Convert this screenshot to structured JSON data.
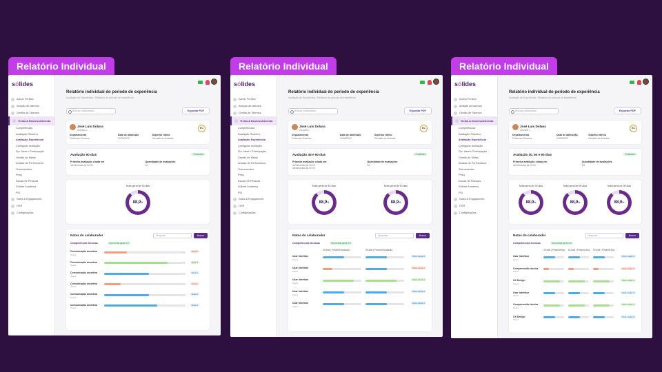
{
  "panels": [
    {
      "tag": "Relatório Individual"
    },
    {
      "tag": "Relatório Individual"
    },
    {
      "tag": "Relatório Individual"
    }
  ],
  "colors": {
    "accent": "#5a2a8a",
    "tag": "#c23ce8",
    "ring": "#6a2a8a",
    "green": "#a4e08a",
    "blue": "#4aabe8",
    "orange": "#f59a7a"
  },
  "app": {
    "logo_a": "s",
    "logo_o": "ó",
    "logo_b": "lides",
    "sidebar": [
      {
        "label": "Admin Perfiles",
        "type": "item"
      },
      {
        "label": "Atração de talentos",
        "type": "item"
      },
      {
        "label": "Gestão de Talentos",
        "type": "item"
      },
      {
        "label": "Treina & Desenvolvimento",
        "type": "active"
      },
      {
        "label": "Competências",
        "type": "sub"
      },
      {
        "label": "Avaliação Reactivo",
        "type": "sub"
      },
      {
        "label": "Avaliação Experiência",
        "type": "sel"
      },
      {
        "label": "Configurar avaliação",
        "type": "sub"
      },
      {
        "label": "Ppi: Ideal e Participação",
        "type": "sub"
      },
      {
        "label": "Gestão de Metas",
        "type": "sub"
      },
      {
        "label": "Análise de Performance",
        "type": "sub"
      },
      {
        "label": "Treinamentos",
        "type": "sub"
      },
      {
        "label": "Pesq",
        "type": "sub"
      },
      {
        "label": "Escala de Pessoas",
        "type": "sub"
      },
      {
        "label": "Sólides Academy",
        "type": "sub"
      },
      {
        "label": "PDI",
        "type": "sub"
      },
      {
        "label": "Sales & Engajamento",
        "type": "item"
      },
      {
        "label": "OKR",
        "type": "item"
      },
      {
        "label": "Configurações",
        "type": "item"
      }
    ],
    "page_title": "Relatório individual do período de experiência",
    "breadcrumb": "Avaliação de Experiência  ›  Relatório do período de experiência",
    "search_placeholder": "Buscar colaborador...",
    "export_label": "Exportar PDF",
    "profile": {
      "name": "José Luis Dolana",
      "role": "Analista 1",
      "f1_label": "Departamento",
      "f1_value": "Customer Success",
      "f2_label": "Data de admissão",
      "f2_value": "24/09/2022",
      "f3_label": "Superior direto",
      "f3_value": "Osvaldo de Andrade",
      "badge": "EC"
    },
    "status_done": "Finalizado",
    "first_eval_label": "Primeira avaliação criada em",
    "first_eval_value": "dd/mm/aaaa às 00:00",
    "qty_label": "Quantidade de avaliações",
    "notes_title": "Notas do colaborador",
    "notes_search": "Pesquisar",
    "notes_btn": "Buscar",
    "comp_title": "Competências técnicas",
    "comp_badge": "Sua média geral 3.5",
    "ring_value": "88,9",
    "ring_unit": "%"
  },
  "p1": {
    "section": "Avaliação 90 dias",
    "qty_value": "1/1",
    "ring_label": "Nota geral de 90 dias",
    "rows": [
      {
        "name": "Comunicação assertiva",
        "sub": "Peso1",
        "fill": 0.28,
        "color": "orange",
        "pill": "Nota 1"
      },
      {
        "name": "Comunicação assertiva",
        "sub": "Peso1",
        "fill": 0.78,
        "color": "green",
        "pill": "Nota 4"
      },
      {
        "name": "Comunicação assertiva",
        "sub": "Peso1",
        "fill": 0.55,
        "color": "blue",
        "pill": "Nota 3"
      },
      {
        "name": "Comunicação assertiva",
        "sub": "Peso1",
        "fill": 0.2,
        "color": "orange",
        "pill": "Nota 1"
      },
      {
        "name": "Comunicação assertiva",
        "sub": "Peso1",
        "fill": 0.55,
        "color": "blue",
        "pill": "Nota 3"
      },
      {
        "name": "Comunicação assertiva",
        "sub": "Peso1",
        "fill": 0.65,
        "color": "blue",
        "pill": "Nota 3"
      }
    ]
  },
  "p2": {
    "section": "Avaliação 45 e 90 dias",
    "qty_value": "2/2",
    "ring_labels": [
      "Nota geral de 45 dias",
      "Nota geral de 90 dias"
    ],
    "cols": [
      "45 dias | Primeira Avaliação",
      "90 dias | Primeira Avaliação"
    ],
    "rows": [
      {
        "name": "Usar Interface",
        "sub": "Peso1",
        "f": [
          0.55,
          0.55
        ],
        "c": [
          "blue",
          "blue"
        ],
        "pill": "Nota média 3",
        "pc": "blue"
      },
      {
        "name": "Usar Interface",
        "sub": "Peso1",
        "f": [
          0.25,
          0.55
        ],
        "c": [
          "orange",
          "blue"
        ],
        "pill": "Nota média 2",
        "pc": "orange"
      },
      {
        "name": "Usar Interface",
        "sub": "Peso1",
        "f": [
          0.8,
          0.8
        ],
        "c": [
          "green",
          "green"
        ],
        "pill": "Nota média 4",
        "pc": "green"
      },
      {
        "name": "Usar Interface",
        "sub": "Peso1",
        "f": [
          0.55,
          0.55
        ],
        "c": [
          "blue",
          "blue"
        ],
        "pill": "Nota média 3",
        "pc": "blue"
      },
      {
        "name": "Usar Interface",
        "sub": "Peso1",
        "f": [
          0.55,
          0.55
        ],
        "c": [
          "blue",
          "blue"
        ],
        "pill": "Nota média 3",
        "pc": "blue"
      }
    ]
  },
  "p3": {
    "section": "Avaliação 30, 60 e 90 dias",
    "qty_value": "3/3",
    "ring_labels": [
      "Nota geral de 30 dias",
      "Nota geral de 60 dias",
      "Nota geral de 90 dias"
    ],
    "cols": [
      "30 dias | Primeira Ava...",
      "60 dias | Primeira Ava...",
      "90 dias | Primeira Ava..."
    ],
    "rows": [
      {
        "name": "Usar Interface",
        "sub": "Peso1",
        "f": [
          0.55,
          0.55,
          0.55
        ],
        "c": [
          "blue",
          "blue",
          "blue"
        ],
        "pill": "Nota média 3",
        "pc": "blue"
      },
      {
        "name": "Compreensão técnica",
        "sub": "Peso1",
        "f": [
          0.25,
          0.25,
          0.25
        ],
        "c": [
          "orange",
          "orange",
          "orange"
        ],
        "pill": "Nota média 1",
        "pc": "orange"
      },
      {
        "name": "UX Design",
        "sub": "Peso1",
        "f": [
          0.8,
          0.8,
          0.8
        ],
        "c": [
          "green",
          "green",
          "green"
        ],
        "pill": "Nota média 4",
        "pc": "green"
      },
      {
        "name": "Usar Interface",
        "sub": "Peso1",
        "f": [
          0.55,
          0.55,
          0.55
        ],
        "c": [
          "blue",
          "blue",
          "blue"
        ],
        "pill": "Nota média 3",
        "pc": "blue"
      },
      {
        "name": "Compreensão técnica",
        "sub": "Peso1",
        "f": [
          0.8,
          0.8,
          0.8
        ],
        "c": [
          "green",
          "green",
          "green"
        ],
        "pill": "Nota média 4",
        "pc": "green"
      },
      {
        "name": "UX Design",
        "sub": "Peso1",
        "f": [
          0.55,
          0.55,
          0.55
        ],
        "c": [
          "blue",
          "blue",
          "blue"
        ],
        "pill": "Nota média 3",
        "pc": "blue"
      }
    ]
  }
}
